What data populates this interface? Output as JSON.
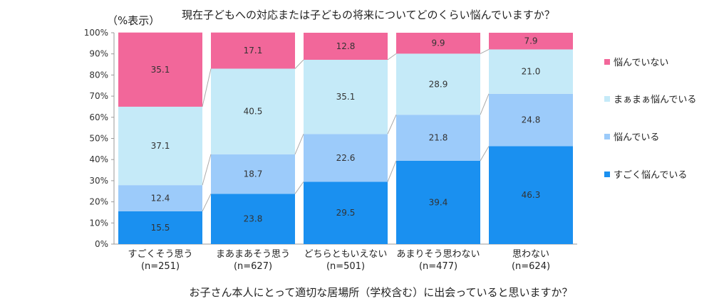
{
  "chart_data": {
    "type": "bar",
    "stacked": true,
    "percent_stacked": true,
    "title": "現在子どもへの対応または子どもの将来についてどのくらい悩んでいますか？",
    "unit_label": "（%表示）",
    "xlabel": "お子さん本人にとって適切な居場所（学校含む）に出会っていると思いますか？",
    "ylabel": "",
    "ylim": [
      0,
      100
    ],
    "yticks": [
      "0%",
      "10%",
      "20%",
      "30%",
      "40%",
      "50%",
      "60%",
      "70%",
      "80%",
      "90%",
      "100%"
    ],
    "categories": [
      "すごくそう思う",
      "まあまあそう思う",
      "どちらともいえない",
      "あまりそう思わない",
      "思わない"
    ],
    "sample_sizes": [
      "(n=251)",
      "(n=627)",
      "(n=501)",
      "(n=477)",
      "(n=624)"
    ],
    "series": [
      {
        "name": "すごく悩んでいる",
        "color": "#1a90f0",
        "values": [
          15.5,
          23.8,
          29.5,
          39.4,
          46.3
        ]
      },
      {
        "name": "悩んでいる",
        "color": "#9ccbfa",
        "values": [
          12.4,
          18.7,
          22.6,
          21.8,
          24.8
        ]
      },
      {
        "name": "まぁまぁ悩んでいる",
        "color": "#c5eaf8",
        "values": [
          37.1,
          40.5,
          35.1,
          28.9,
          21.0
        ]
      },
      {
        "name": "悩んでいない",
        "color": "#f2679a",
        "values": [
          35.1,
          17.1,
          12.8,
          9.9,
          7.9
        ]
      }
    ],
    "legend_order": [
      "悩んでいない",
      "まぁまぁ悩んでいる",
      "悩んでいる",
      "すごく悩んでいる"
    ],
    "legend_position": "right",
    "grid": false
  }
}
